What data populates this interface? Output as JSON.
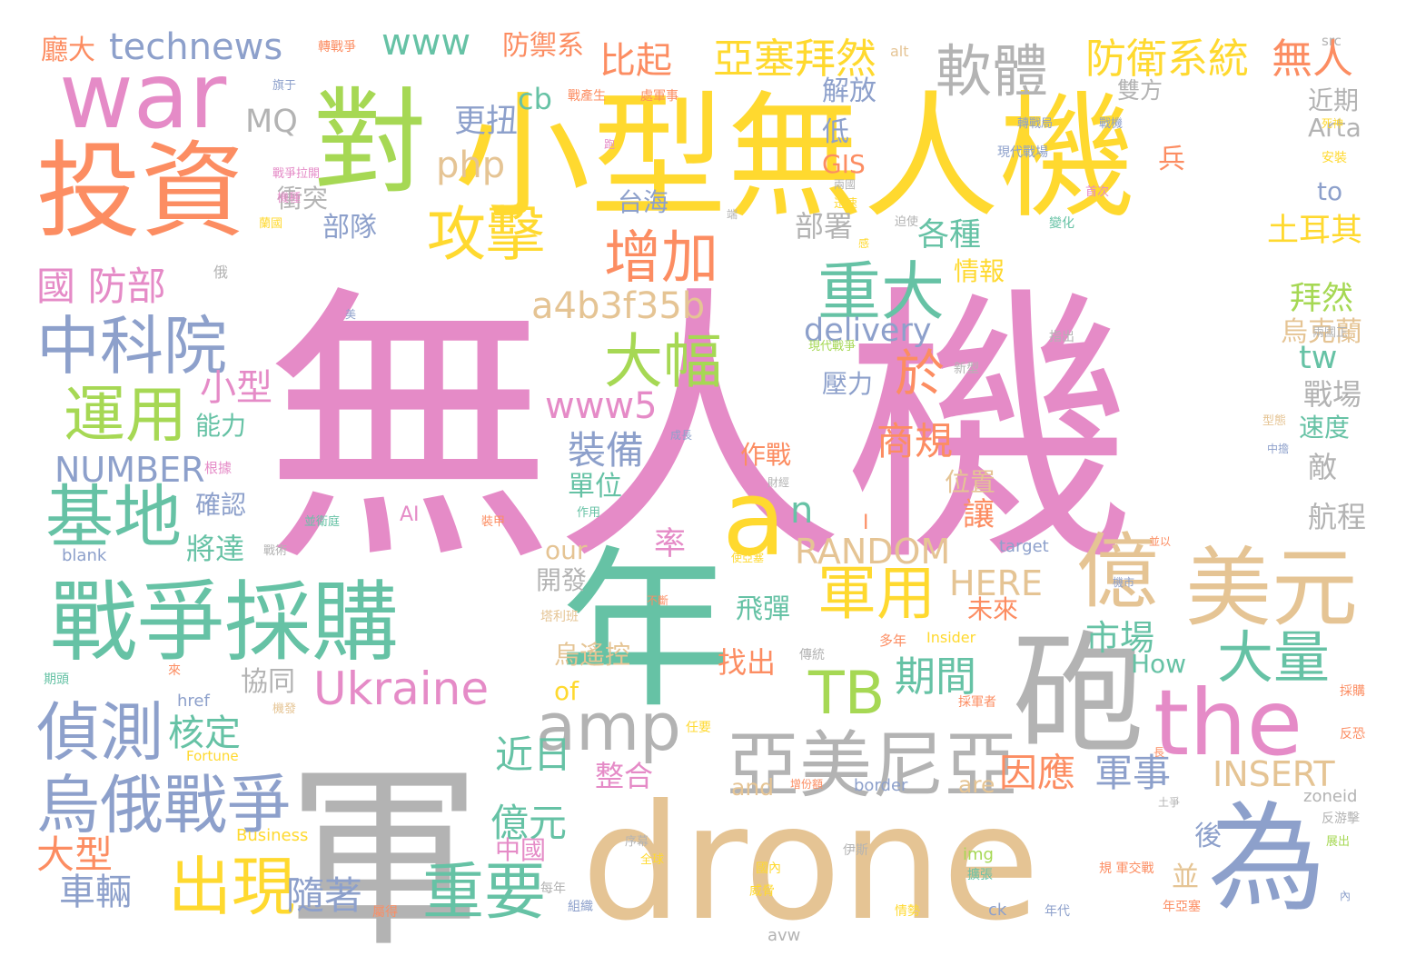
{
  "palette": {
    "pink": "#e58bc7",
    "green": "#66c2a5",
    "orange": "#fc8d62",
    "blue": "#8da0cb",
    "lime": "#a6d854",
    "yellow": "#ffd92f",
    "tan": "#e5c494",
    "gray": "#b3b3b3"
  },
  "words": [
    {
      "text": "無人機",
      "color": "pink"
    },
    {
      "text": "軍",
      "color": "gray"
    },
    {
      "text": "drone",
      "color": "tan"
    },
    {
      "text": "年",
      "color": "green"
    },
    {
      "text": "小型無人機",
      "color": "yellow"
    },
    {
      "text": "戰爭採購",
      "color": "green"
    },
    {
      "text": "投資",
      "color": "orange"
    },
    {
      "text": "對",
      "color": "lime"
    },
    {
      "text": "war",
      "color": "pink"
    },
    {
      "text": "砲",
      "color": "gray"
    },
    {
      "text": "為",
      "color": "blue"
    },
    {
      "text": "the",
      "color": "pink"
    },
    {
      "text": "億",
      "color": "tan"
    },
    {
      "text": "美元",
      "color": "tan"
    },
    {
      "text": "a",
      "color": "yellow"
    },
    {
      "text": "amp",
      "color": "gray"
    },
    {
      "text": "亞美尼亞",
      "color": "gray"
    },
    {
      "text": "烏俄戰爭",
      "color": "blue"
    },
    {
      "text": "偵測",
      "color": "blue"
    },
    {
      "text": "基地",
      "color": "green"
    },
    {
      "text": "中科院",
      "color": "blue"
    },
    {
      "text": "運用",
      "color": "lime"
    },
    {
      "text": "出現",
      "color": "yellow"
    },
    {
      "text": "重要",
      "color": "green"
    },
    {
      "text": "Ukraine",
      "color": "pink"
    },
    {
      "text": "攻擊",
      "color": "yellow"
    },
    {
      "text": "增加",
      "color": "orange"
    },
    {
      "text": "重大",
      "color": "green"
    },
    {
      "text": "大幅",
      "color": "lime"
    },
    {
      "text": "軍用",
      "color": "yellow"
    },
    {
      "text": "大量",
      "color": "green"
    },
    {
      "text": "TB",
      "color": "lime"
    },
    {
      "text": "軟體",
      "color": "gray"
    },
    {
      "text": "亞塞拜然",
      "color": "yellow"
    },
    {
      "text": "防衛系統",
      "color": "yellow"
    },
    {
      "text": "無人",
      "color": "orange"
    },
    {
      "text": "technews",
      "color": "blue"
    },
    {
      "text": "www",
      "color": "green"
    },
    {
      "text": "國 防部",
      "color": "pink"
    },
    {
      "text": "於",
      "color": "orange"
    },
    {
      "text": "a4b3f35b",
      "color": "tan"
    },
    {
      "text": "delivery",
      "color": "blue"
    },
    {
      "text": "www5",
      "color": "pink"
    },
    {
      "text": "NUMBER",
      "color": "blue"
    },
    {
      "text": "RANDOM",
      "color": "tan"
    },
    {
      "text": "HERE",
      "color": "tan"
    },
    {
      "text": "INSERT",
      "color": "tan"
    },
    {
      "text": "軍事",
      "color": "blue"
    },
    {
      "text": "因應",
      "color": "orange"
    },
    {
      "text": "期間",
      "color": "green"
    },
    {
      "text": "近日",
      "color": "green"
    },
    {
      "text": "核定",
      "color": "green"
    },
    {
      "text": "裝備",
      "color": "blue"
    },
    {
      "text": "比起",
      "color": "orange"
    },
    {
      "text": "更扭",
      "color": "blue"
    },
    {
      "text": "php",
      "color": "tan"
    },
    {
      "text": "MQ",
      "color": "gray"
    },
    {
      "text": "cb",
      "color": "green"
    },
    {
      "text": "億元",
      "color": "green"
    },
    {
      "text": "n",
      "color": "green"
    },
    {
      "text": "大型",
      "color": "orange"
    },
    {
      "text": "車輛",
      "color": "blue"
    },
    {
      "text": "隨著",
      "color": "blue"
    },
    {
      "text": "商規",
      "color": "orange"
    },
    {
      "text": "小型",
      "color": "pink"
    },
    {
      "text": "防禦系",
      "color": "orange"
    },
    {
      "text": "廳大",
      "color": "orange"
    },
    {
      "text": "tw",
      "color": "green"
    },
    {
      "text": "市場",
      "color": "green"
    },
    {
      "text": "土耳其",
      "color": "yellow"
    },
    {
      "text": "拜然",
      "color": "lime"
    },
    {
      "text": "烏克蘭",
      "color": "tan"
    },
    {
      "text": "各種",
      "color": "green"
    },
    {
      "text": "部署",
      "color": "gray"
    },
    {
      "text": "部隊",
      "color": "blue"
    },
    {
      "text": "衝突",
      "color": "gray"
    },
    {
      "text": "戰場",
      "color": "gray"
    },
    {
      "text": "速度",
      "color": "green"
    },
    {
      "text": "敵",
      "color": "gray"
    },
    {
      "text": "航程",
      "color": "gray"
    },
    {
      "text": "雙方",
      "color": "gray"
    },
    {
      "text": "近期",
      "color": "gray"
    },
    {
      "text": "解放",
      "color": "blue"
    },
    {
      "text": "低",
      "color": "blue"
    },
    {
      "text": "兵",
      "color": "orange"
    },
    {
      "text": "Arta",
      "color": "gray"
    },
    {
      "text": "to",
      "color": "blue"
    },
    {
      "text": "GIS",
      "color": "orange"
    },
    {
      "text": "台海",
      "color": "blue"
    },
    {
      "text": "情報",
      "color": "yellow"
    },
    {
      "text": "壓力",
      "color": "blue"
    },
    {
      "text": "能力",
      "color": "green"
    },
    {
      "text": "確認",
      "color": "blue"
    },
    {
      "text": "將達",
      "color": "green"
    },
    {
      "text": "作戰",
      "color": "orange"
    },
    {
      "text": "單位",
      "color": "green"
    },
    {
      "text": "位置",
      "color": "tan"
    },
    {
      "text": "讓",
      "color": "orange"
    },
    {
      "text": "率",
      "color": "pink"
    },
    {
      "text": "開發",
      "color": "gray"
    },
    {
      "text": "飛彈",
      "color": "green"
    },
    {
      "text": "未來",
      "color": "orange"
    },
    {
      "text": "our",
      "color": "tan"
    },
    {
      "text": "of",
      "color": "yellow"
    },
    {
      "text": "How",
      "color": "green"
    },
    {
      "text": "協同",
      "color": "gray"
    },
    {
      "text": "找出",
      "color": "orange"
    },
    {
      "text": "烏遙控",
      "color": "tan"
    },
    {
      "text": "整合",
      "color": "pink"
    },
    {
      "text": "and",
      "color": "tan"
    },
    {
      "text": "are",
      "color": "tan"
    },
    {
      "text": "中國",
      "color": "pink"
    },
    {
      "text": "後",
      "color": "blue"
    },
    {
      "text": "並",
      "color": "tan"
    },
    {
      "text": "AI",
      "color": "pink"
    },
    {
      "text": "I",
      "color": "orange"
    },
    {
      "text": "alt",
      "color": "tan"
    },
    {
      "text": "src",
      "color": "gray"
    },
    {
      "text": "blank",
      "color": "blue"
    },
    {
      "text": "target",
      "color": "blue"
    },
    {
      "text": "href",
      "color": "blue"
    },
    {
      "text": "Insider",
      "color": "yellow"
    },
    {
      "text": "Business",
      "color": "yellow"
    },
    {
      "text": "Fortune",
      "color": "yellow"
    },
    {
      "text": "border",
      "color": "blue"
    },
    {
      "text": "zoneid",
      "color": "gray"
    },
    {
      "text": "avw",
      "color": "gray"
    },
    {
      "text": "ck",
      "color": "blue"
    },
    {
      "text": "img",
      "color": "lime"
    },
    {
      "text": "轉戰爭",
      "color": "orange"
    },
    {
      "text": "旗于",
      "color": "blue"
    },
    {
      "text": "戰產生",
      "color": "orange"
    },
    {
      "text": "處軍事",
      "color": "orange"
    },
    {
      "text": "轉戰局",
      "color": "blue"
    },
    {
      "text": "戰機",
      "color": "blue"
    },
    {
      "text": "死神",
      "color": "yellow"
    },
    {
      "text": "現代戰場",
      "color": "blue"
    },
    {
      "text": "安裝",
      "color": "yellow"
    },
    {
      "text": "首次",
      "color": "pink"
    },
    {
      "text": "兩國",
      "color": "gray"
    },
    {
      "text": "迅速",
      "color": "yellow"
    },
    {
      "text": "戰爭拉開",
      "color": "pink"
    },
    {
      "text": "機種",
      "color": "pink"
    },
    {
      "text": "跑",
      "color": "pink"
    },
    {
      "text": "蘭國",
      "color": "yellow"
    },
    {
      "text": "端",
      "color": "gray"
    },
    {
      "text": "迫使",
      "color": "gray"
    },
    {
      "text": "變化",
      "color": "green"
    },
    {
      "text": "感",
      "color": "yellow"
    },
    {
      "text": "俄",
      "color": "gray"
    },
    {
      "text": "美",
      "color": "blue"
    },
    {
      "text": "兩國正",
      "color": "gray"
    },
    {
      "text": "指出",
      "color": "gray"
    },
    {
      "text": "現代戰爭",
      "color": "lime"
    },
    {
      "text": "新型",
      "color": "gray"
    },
    {
      "text": "成長",
      "color": "blue"
    },
    {
      "text": "型態",
      "color": "tan"
    },
    {
      "text": "中擔",
      "color": "blue"
    },
    {
      "text": "根據",
      "color": "pink"
    },
    {
      "text": "財經",
      "color": "gray"
    },
    {
      "text": "並衛庭",
      "color": "green"
    },
    {
      "text": "裝甲",
      "color": "orange"
    },
    {
      "text": "作用",
      "color": "green"
    },
    {
      "text": "戰術",
      "color": "gray"
    },
    {
      "text": "使亞塞",
      "color": "yellow"
    },
    {
      "text": "並以",
      "color": "orange"
    },
    {
      "text": "機市",
      "color": "blue"
    },
    {
      "text": "塔利班",
      "color": "tan"
    },
    {
      "text": "不斷",
      "color": "orange"
    },
    {
      "text": "傳統",
      "color": "gray"
    },
    {
      "text": "多年",
      "color": "orange"
    },
    {
      "text": "期頭",
      "color": "green"
    },
    {
      "text": "來",
      "color": "orange"
    },
    {
      "text": "機發",
      "color": "tan"
    },
    {
      "text": "採軍者",
      "color": "orange"
    },
    {
      "text": "任要",
      "color": "yellow"
    },
    {
      "text": "長",
      "color": "orange"
    },
    {
      "text": "採購",
      "color": "orange"
    },
    {
      "text": "反恐",
      "color": "orange"
    },
    {
      "text": "增份額",
      "color": "orange"
    },
    {
      "text": "土爭",
      "color": "gray"
    },
    {
      "text": "反游擊",
      "color": "gray"
    },
    {
      "text": "展出",
      "color": "lime"
    },
    {
      "text": "序幕",
      "color": "gray"
    },
    {
      "text": "全球",
      "color": "yellow"
    },
    {
      "text": "伊斯",
      "color": "gray"
    },
    {
      "text": "國內",
      "color": "yellow"
    },
    {
      "text": "擴張",
      "color": "green"
    },
    {
      "text": "規 軍交戰",
      "color": "orange"
    },
    {
      "text": "每年",
      "color": "gray"
    },
    {
      "text": "威脅",
      "color": "yellow"
    },
    {
      "text": "組織",
      "color": "blue"
    },
    {
      "text": "屬得",
      "color": "orange"
    },
    {
      "text": "情勢",
      "color": "yellow"
    },
    {
      "text": "年代",
      "color": "blue"
    },
    {
      "text": "年亞塞",
      "color": "orange"
    },
    {
      "text": "內",
      "color": "blue"
    }
  ]
}
